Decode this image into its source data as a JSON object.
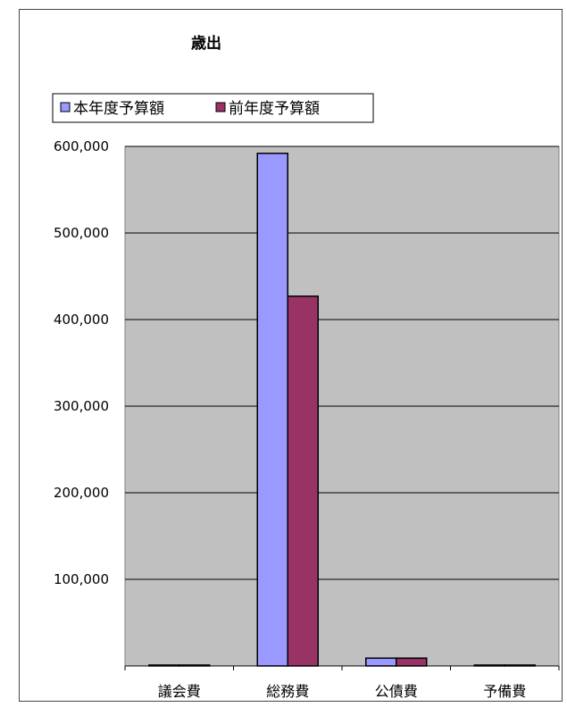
{
  "chart_data": {
    "type": "bar",
    "title": "歳出",
    "xlabel": "",
    "ylabel": "",
    "categories": [
      "議会費",
      "総務費",
      "公債費",
      "予備費"
    ],
    "series": [
      {
        "name": "本年度予算額",
        "color": "#9999ff",
        "values": [
          1000,
          592000,
          9000,
          1000
        ]
      },
      {
        "name": "前年度予算額",
        "color": "#993366",
        "values": [
          1000,
          427000,
          9000,
          1000
        ]
      }
    ],
    "ylim": [
      0,
      600000
    ],
    "yticks": [
      {
        "value": 100000,
        "label": "100,000"
      },
      {
        "value": 200000,
        "label": "200,000"
      },
      {
        "value": 300000,
        "label": "300,000"
      },
      {
        "value": 400000,
        "label": "400,000"
      },
      {
        "value": 500000,
        "label": "500,000"
      },
      {
        "value": 600000,
        "label": "600,000"
      }
    ],
    "grid": true,
    "legend_position": "top-left",
    "plot_background": "#c0c0c0"
  }
}
